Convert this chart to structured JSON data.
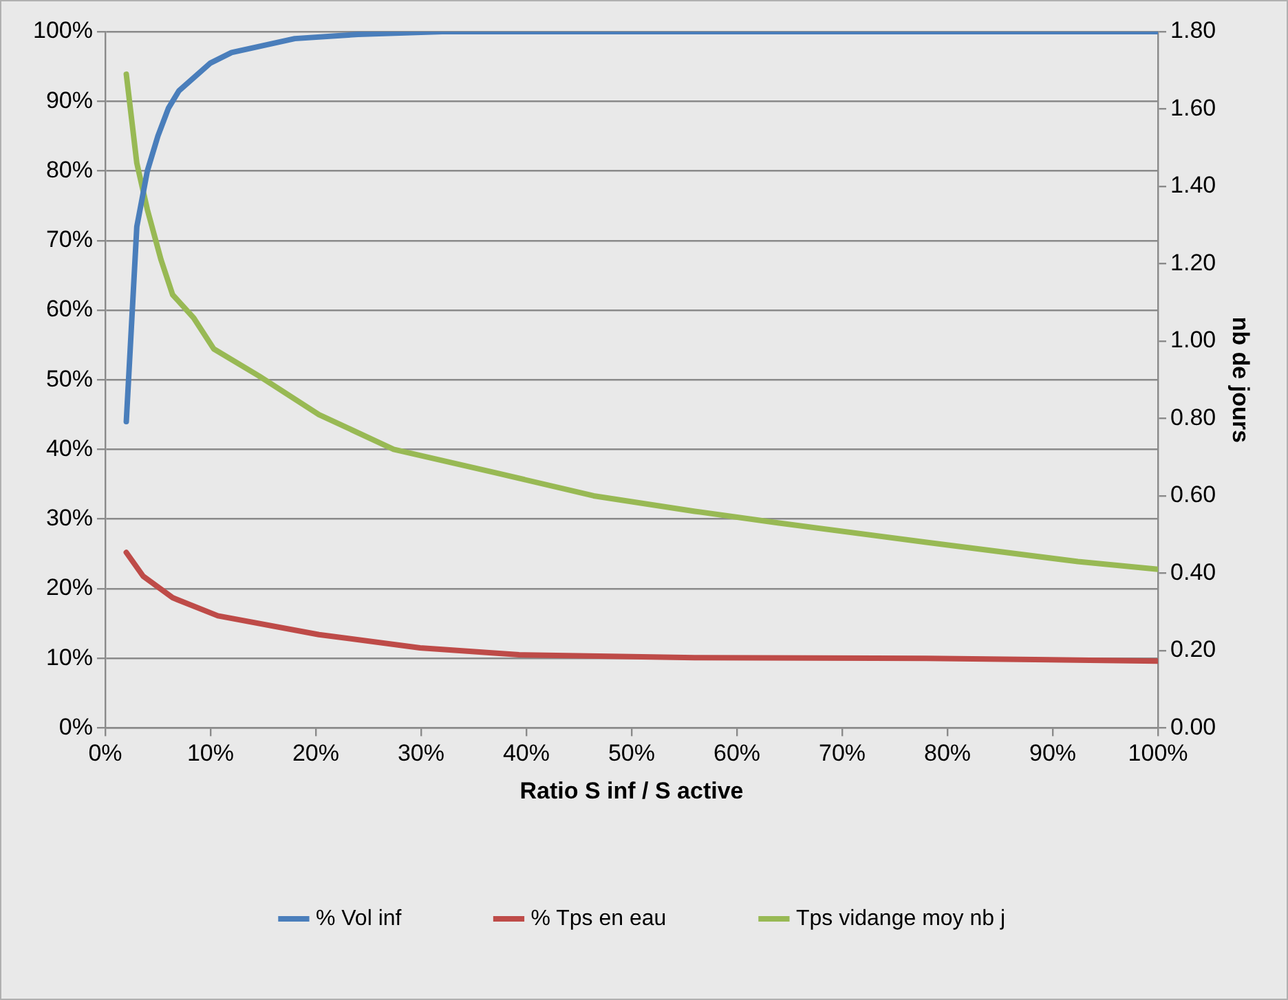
{
  "chart_data": {
    "type": "line",
    "xlabel": "Ratio S inf / S active",
    "y2label": "nb de jours",
    "xlim": [
      0,
      100
    ],
    "xticks": [
      {
        "value": 0,
        "label": "0%"
      },
      {
        "value": 10,
        "label": "10%"
      },
      {
        "value": 20,
        "label": "20%"
      },
      {
        "value": 30,
        "label": "30%"
      },
      {
        "value": 40,
        "label": "40%"
      },
      {
        "value": 50,
        "label": "50%"
      },
      {
        "value": 60,
        "label": "60%"
      },
      {
        "value": 70,
        "label": "70%"
      },
      {
        "value": 80,
        "label": "80%"
      },
      {
        "value": 90,
        "label": "90%"
      },
      {
        "value": 100,
        "label": "100%"
      }
    ],
    "ylim": [
      0,
      100
    ],
    "yticks": [
      {
        "value": 0,
        "label": "0%"
      },
      {
        "value": 10,
        "label": "10%"
      },
      {
        "value": 20,
        "label": "20%"
      },
      {
        "value": 30,
        "label": "30%"
      },
      {
        "value": 40,
        "label": "40%"
      },
      {
        "value": 50,
        "label": "50%"
      },
      {
        "value": 60,
        "label": "60%"
      },
      {
        "value": 70,
        "label": "70%"
      },
      {
        "value": 80,
        "label": "80%"
      },
      {
        "value": 90,
        "label": "90%"
      },
      {
        "value": 100,
        "label": "100%"
      }
    ],
    "y2lim": [
      0,
      1.8
    ],
    "y2ticks": [
      {
        "value": 0,
        "label": "0.00"
      },
      {
        "value": 0.2,
        "label": "0.20"
      },
      {
        "value": 0.4,
        "label": "0.40"
      },
      {
        "value": 0.6,
        "label": "0.60"
      },
      {
        "value": 0.8,
        "label": "0.80"
      },
      {
        "value": 1,
        "label": "1.00"
      },
      {
        "value": 1.2,
        "label": "1.20"
      },
      {
        "value": 1.4,
        "label": "1.40"
      },
      {
        "value": 1.6,
        "label": "1.60"
      },
      {
        "value": 1.8,
        "label": "1.80"
      }
    ],
    "grid": "y",
    "legend": "bottom",
    "marker": "none",
    "line_style": "solid",
    "series": [
      {
        "name": "% Vol inf",
        "color": "#4a7ebb",
        "x": [
          2,
          3,
          4,
          5,
          6,
          7,
          10,
          12,
          18,
          24,
          32,
          50,
          100
        ],
        "values": [
          44,
          72,
          80,
          85,
          89,
          91.5,
          95.5,
          97,
          99,
          99.6,
          100,
          100,
          100
        ]
      },
      {
        "name": "% Tps en eau",
        "color": "#be4b48",
        "x": [
          2,
          3.6,
          6.4,
          10.7,
          20.3,
          29.9,
          39.3,
          56,
          78,
          100
        ],
        "values": [
          25.2,
          21.8,
          18.7,
          16.1,
          13.4,
          11.5,
          10.5,
          10.1,
          10,
          9.6
        ]
      },
      {
        "name": "Tps vidange moy nb j",
        "color": "#98b954",
        "axis": "y2",
        "x": [
          2,
          3,
          4,
          5.3,
          6.4,
          8.4,
          10.3,
          14.6,
          20.3,
          27.4,
          37,
          46.4,
          56,
          63.9,
          78,
          92.4,
          100
        ],
        "values": [
          1.69,
          1.46,
          1.34,
          1.21,
          1.12,
          1.06,
          0.98,
          0.91,
          0.81,
          0.72,
          0.66,
          0.6,
          0.56,
          0.53,
          0.48,
          0.43,
          0.41
        ]
      }
    ]
  }
}
